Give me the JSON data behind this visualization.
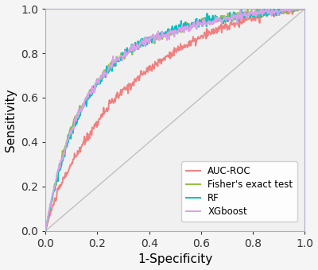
{
  "title": "",
  "xlabel": "1-Specificity",
  "ylabel": "Sensitivity",
  "xlim": [
    0.0,
    1.0
  ],
  "ylim": [
    0.0,
    1.0
  ],
  "xticks": [
    0.0,
    0.2,
    0.4,
    0.6,
    0.8,
    1.0
  ],
  "yticks": [
    0.0,
    0.2,
    0.4,
    0.6,
    0.8,
    1.0
  ],
  "diagonal_color": "#c0c0c0",
  "background_color": "#f5f5f5",
  "plot_bg_color": "#f0f0f0",
  "curves": [
    {
      "name": "AUC-ROC",
      "color": "#f08080",
      "linewidth": 1.4,
      "seed": 10,
      "base_x": [
        0.0,
        0.05,
        0.1,
        0.15,
        0.2,
        0.25,
        0.3,
        0.35,
        0.4,
        0.45,
        0.5,
        0.55,
        0.6,
        0.65,
        0.7,
        0.75,
        0.8,
        0.85,
        0.9,
        0.95,
        1.0
      ],
      "base_y": [
        0.0,
        0.18,
        0.3,
        0.4,
        0.49,
        0.57,
        0.63,
        0.68,
        0.73,
        0.77,
        0.81,
        0.84,
        0.87,
        0.9,
        0.92,
        0.94,
        0.96,
        0.975,
        0.985,
        0.995,
        1.0
      ]
    },
    {
      "name": "Fisher's exact test",
      "color": "#90c040",
      "linewidth": 1.4,
      "seed": 20,
      "base_x": [
        0.0,
        0.05,
        0.1,
        0.15,
        0.2,
        0.25,
        0.3,
        0.35,
        0.4,
        0.45,
        0.5,
        0.55,
        0.6,
        0.65,
        0.7,
        0.75,
        0.8,
        0.85,
        0.9,
        0.95,
        1.0
      ],
      "base_y": [
        0.0,
        0.27,
        0.46,
        0.58,
        0.67,
        0.74,
        0.79,
        0.83,
        0.86,
        0.88,
        0.9,
        0.92,
        0.935,
        0.948,
        0.96,
        0.97,
        0.978,
        0.986,
        0.992,
        0.997,
        1.0
      ]
    },
    {
      "name": "RF",
      "color": "#00c0c0",
      "linewidth": 1.4,
      "seed": 30,
      "base_x": [
        0.0,
        0.05,
        0.1,
        0.15,
        0.2,
        0.25,
        0.3,
        0.35,
        0.4,
        0.45,
        0.5,
        0.55,
        0.6,
        0.65,
        0.7,
        0.75,
        0.8,
        0.85,
        0.9,
        0.95,
        1.0
      ],
      "base_y": [
        0.0,
        0.26,
        0.44,
        0.57,
        0.66,
        0.73,
        0.79,
        0.83,
        0.86,
        0.89,
        0.91,
        0.925,
        0.938,
        0.95,
        0.96,
        0.97,
        0.978,
        0.985,
        0.991,
        0.997,
        1.0
      ]
    },
    {
      "name": "XGboost",
      "color": "#d8a0e8",
      "linewidth": 1.4,
      "seed": 40,
      "base_x": [
        0.0,
        0.05,
        0.1,
        0.15,
        0.2,
        0.25,
        0.3,
        0.35,
        0.4,
        0.45,
        0.5,
        0.55,
        0.6,
        0.65,
        0.7,
        0.75,
        0.8,
        0.85,
        0.9,
        0.95,
        1.0
      ],
      "base_y": [
        0.0,
        0.27,
        0.45,
        0.58,
        0.67,
        0.74,
        0.79,
        0.83,
        0.86,
        0.88,
        0.9,
        0.915,
        0.93,
        0.943,
        0.956,
        0.968,
        0.977,
        0.985,
        0.991,
        0.997,
        1.0
      ]
    }
  ],
  "axis_fontsize": 11,
  "tick_fontsize": 10,
  "figsize": [
    4.0,
    3.4
  ],
  "dpi": 100
}
